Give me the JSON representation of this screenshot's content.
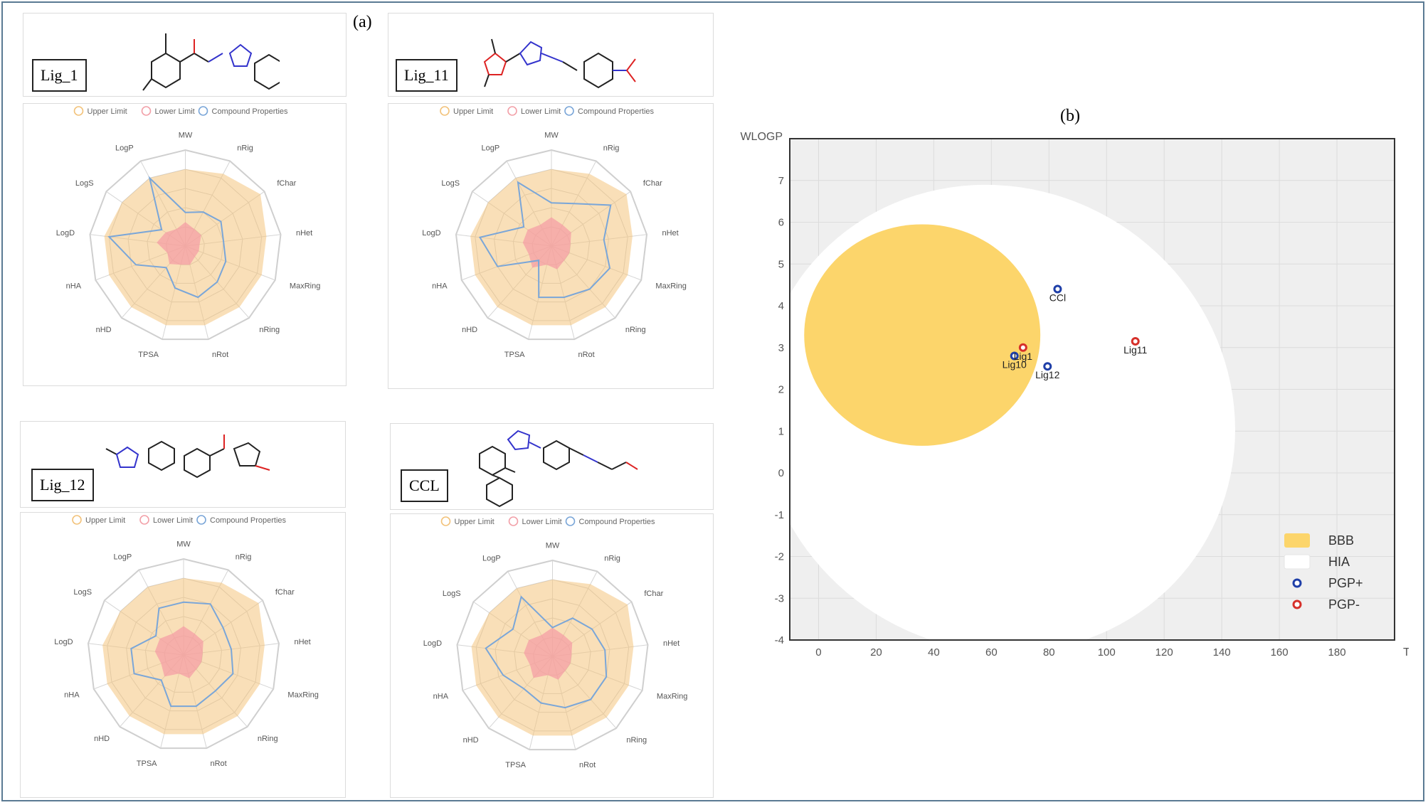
{
  "panel_a_label": "(a)",
  "panel_b_label": "(b)",
  "radar_legend": [
    "Upper Limit",
    "Lower Limit",
    "Compound Properties"
  ],
  "radar_legend_colors": [
    "#f2c27a",
    "#f2a0a8",
    "#7aa6d8"
  ],
  "radar_axes": [
    "MW",
    "nRig",
    "fChar",
    "nHet",
    "MaxRing",
    "nRing",
    "nRot",
    "TPSA",
    "nHD",
    "nHA",
    "LogD",
    "LogS",
    "LogP"
  ],
  "compounds": [
    {
      "label": "Lig_1",
      "upper": [
        0.8,
        0.85,
        0.95,
        0.85,
        0.85,
        0.85,
        0.85,
        0.85,
        0.85,
        0.85,
        0.85,
        0.8,
        0.8
      ],
      "lower": [
        0.25,
        0.2,
        0.2,
        0.15,
        0.15,
        0.15,
        0.2,
        0.2,
        0.25,
        0.2,
        0.3,
        0.25,
        0.2
      ],
      "compound": [
        0.35,
        0.4,
        0.45,
        0.4,
        0.45,
        0.5,
        0.55,
        0.45,
        0.3,
        0.55,
        0.8,
        0.3,
        0.8
      ]
    },
    {
      "label": "Lig_11",
      "upper": [
        0.8,
        0.85,
        0.95,
        0.85,
        0.85,
        0.85,
        0.85,
        0.85,
        0.85,
        0.85,
        0.85,
        0.8,
        0.8
      ],
      "lower": [
        0.3,
        0.25,
        0.25,
        0.2,
        0.2,
        0.2,
        0.25,
        0.2,
        0.3,
        0.25,
        0.3,
        0.3,
        0.25
      ],
      "compound": [
        0.45,
        0.5,
        0.75,
        0.55,
        0.65,
        0.6,
        0.55,
        0.55,
        0.2,
        0.6,
        0.75,
        0.35,
        0.75
      ]
    },
    {
      "label": "Lig_12",
      "upper": [
        0.8,
        0.85,
        0.95,
        0.85,
        0.85,
        0.85,
        0.85,
        0.85,
        0.85,
        0.85,
        0.85,
        0.8,
        0.8
      ],
      "lower": [
        0.3,
        0.25,
        0.25,
        0.2,
        0.2,
        0.2,
        0.25,
        0.2,
        0.3,
        0.25,
        0.3,
        0.3,
        0.25
      ],
      "compound": [
        0.55,
        0.6,
        0.5,
        0.5,
        0.55,
        0.5,
        0.55,
        0.55,
        0.35,
        0.55,
        0.55,
        0.35,
        0.55
      ]
    },
    {
      "label": "CCL",
      "upper": [
        0.8,
        0.85,
        0.95,
        0.85,
        0.85,
        0.85,
        0.85,
        0.85,
        0.85,
        0.85,
        0.85,
        0.8,
        0.8
      ],
      "lower": [
        0.3,
        0.25,
        0.25,
        0.2,
        0.2,
        0.2,
        0.25,
        0.2,
        0.3,
        0.25,
        0.3,
        0.3,
        0.25
      ],
      "compound": [
        0.3,
        0.45,
        0.5,
        0.55,
        0.6,
        0.6,
        0.55,
        0.5,
        0.45,
        0.55,
        0.7,
        0.5,
        0.7
      ]
    }
  ],
  "chart_data": {
    "type": "scatter",
    "title": "",
    "xlabel": "TPSA",
    "ylabel": "WLOGP",
    "xlim": [
      -10,
      200
    ],
    "ylim": [
      -4,
      8
    ],
    "xticks": [
      0,
      20,
      40,
      60,
      80,
      100,
      120,
      140,
      160,
      180
    ],
    "yticks": [
      -4,
      -3,
      -2,
      -1,
      0,
      1,
      2,
      3,
      4,
      5,
      6,
      7
    ],
    "grid": true,
    "legend_position": "bottom-right",
    "regions": [
      {
        "name": "BBB",
        "color": "#fcd56b",
        "center": [
          36,
          3.3
        ],
        "radius_x": 41,
        "radius_y": 2.65
      },
      {
        "name": "HIA",
        "color": "#ffffff",
        "center": [
          62,
          1.3
        ],
        "radius_x": 84,
        "radius_y": 5.5,
        "angle_deg": -35
      }
    ],
    "series": [
      {
        "name": "PGP+",
        "color": "#1f3fa8",
        "points": [
          {
            "label": "CCl",
            "x": 83,
            "y": 4.4
          },
          {
            "label": "Lig10",
            "x": 68,
            "y": 2.8
          },
          {
            "label": "Lig12",
            "x": 79.5,
            "y": 2.55
          }
        ]
      },
      {
        "name": "PGP-",
        "color": "#d6302a",
        "points": [
          {
            "label": "Lig1",
            "x": 71,
            "y": 3.0
          },
          {
            "label": "Lig11",
            "x": 110,
            "y": 3.15
          }
        ]
      }
    ],
    "legend": [
      {
        "name": "BBB",
        "kind": "fill",
        "color": "#fcd56b"
      },
      {
        "name": "HIA",
        "kind": "fill",
        "color": "#ffffff"
      },
      {
        "name": "PGP+",
        "kind": "marker",
        "color": "#1f3fa8"
      },
      {
        "name": "PGP-",
        "kind": "marker",
        "color": "#d6302a"
      }
    ]
  }
}
